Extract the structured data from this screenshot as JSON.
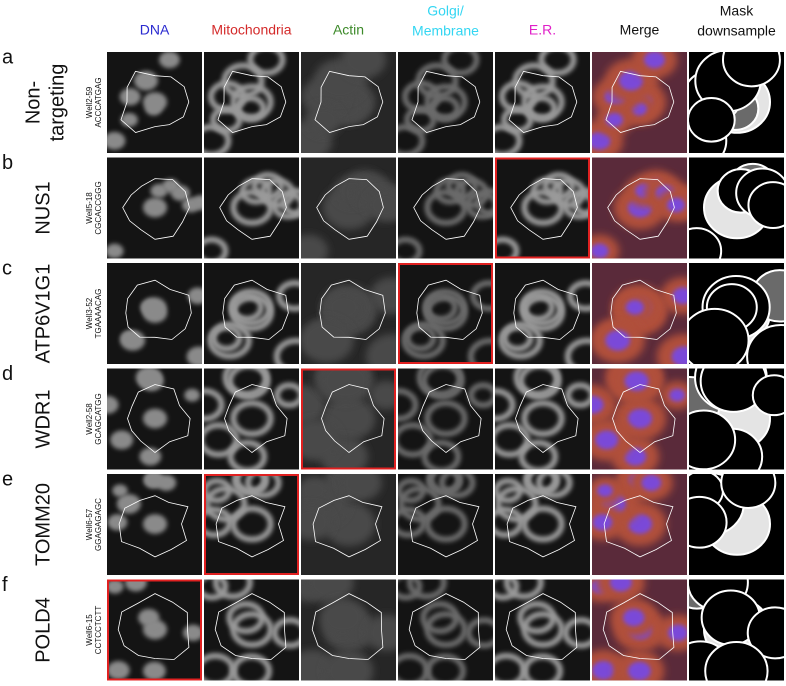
{
  "columns": [
    {
      "lines": [
        "DNA"
      ],
      "color": "#2a2ad0"
    },
    {
      "lines": [
        "Mitochondria"
      ],
      "color": "#d42a2a"
    },
    {
      "lines": [
        "Actin"
      ],
      "color": "#3d8a2a"
    },
    {
      "lines": [
        "Golgi/",
        "Membrane"
      ],
      "color": "#33d6f2"
    },
    {
      "lines": [
        "E.R."
      ],
      "color": "#e020c8"
    },
    {
      "lines": [
        "Merge"
      ],
      "color": "#111111"
    },
    {
      "lines": [
        "Mask",
        "downsample"
      ],
      "color": "#111111"
    }
  ],
  "rows": [
    {
      "letter": "a",
      "gene": [
        "Non-",
        "targeting"
      ],
      "well": "Well2-59",
      "sequence": "ACCCATGAG"
    },
    {
      "letter": "b",
      "gene": [
        "NUS1"
      ],
      "well": "Well5-18",
      "sequence": "CGCACCGGG"
    },
    {
      "letter": "c",
      "gene": [
        "ATP6V1G1"
      ],
      "well": "Well3-52",
      "sequence": "TGAAAACAG"
    },
    {
      "letter": "d",
      "gene": [
        "WDR1"
      ],
      "well": "Well2-58",
      "sequence": "GCAGCATGG"
    },
    {
      "letter": "e",
      "gene": [
        "TOMM20"
      ],
      "well": "Well6-57",
      "sequence": "GGAGAGAGC"
    },
    {
      "letter": "f",
      "gene": [
        "POLD4"
      ],
      "well": "Well6-15",
      "sequence": "CCTCCTCTT"
    }
  ]
}
